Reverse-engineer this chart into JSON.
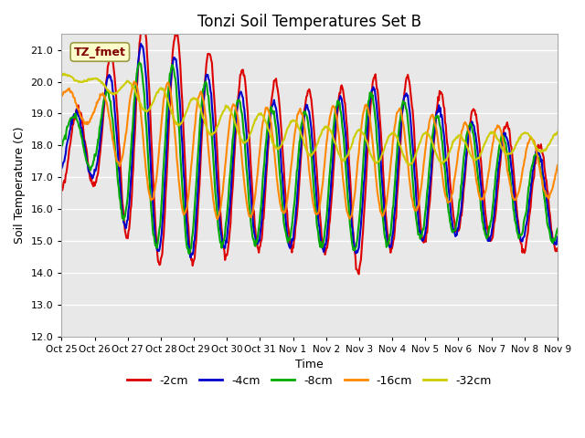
{
  "title": "Tonzi Soil Temperatures Set B",
  "xlabel": "Time",
  "ylabel": "Soil Temperature (C)",
  "ylim": [
    12.0,
    21.5
  ],
  "background_color": "#ffffff",
  "plot_bg_color": "#e8e8e8",
  "grid_color": "#ffffff",
  "annotation_text": "TZ_fmet",
  "annotation_box_color": "#ffffcc",
  "annotation_text_color": "#800000",
  "x_tick_labels": [
    "Oct 25",
    "Oct 26",
    "Oct 27",
    "Oct 28",
    "Oct 29",
    "Oct 30",
    "Oct 31",
    "Nov 1",
    "Nov 2",
    "Nov 3",
    "Nov 4",
    "Nov 5",
    "Nov 6",
    "Nov 7",
    "Nov 8",
    "Nov 9"
  ],
  "series_colors": {
    "-2cm": "#dd0000",
    "-4cm": "#0000cc",
    "-8cm": "#00aa00",
    "-16cm": "#ff8800",
    "-32cm": "#cccc00"
  },
  "series_linewidth": 1.5,
  "legend_entries": [
    "-2cm",
    "-4cm",
    "-8cm",
    "-16cm",
    "-32cm"
  ],
  "yticks": [
    12.0,
    13.0,
    14.0,
    15.0,
    16.0,
    17.0,
    18.0,
    19.0,
    20.0,
    21.0
  ]
}
